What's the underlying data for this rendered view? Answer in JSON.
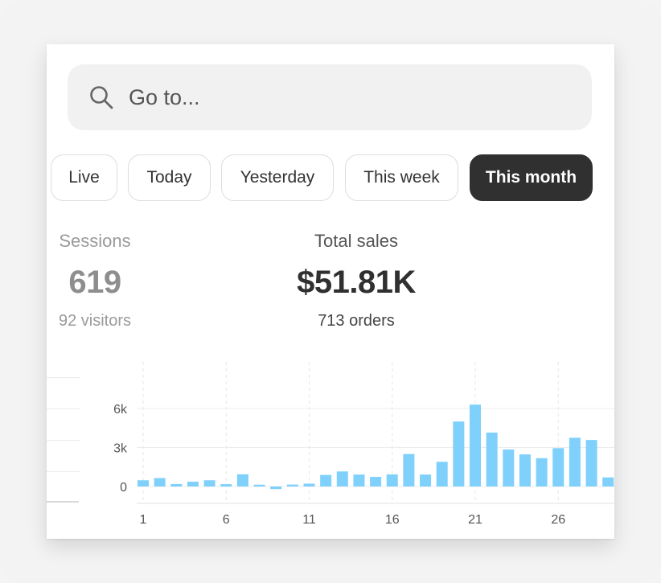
{
  "search": {
    "placeholder": "Go to..."
  },
  "date_ranges": [
    {
      "label": "Live",
      "selected": false
    },
    {
      "label": "Today",
      "selected": false
    },
    {
      "label": "Yesterday",
      "selected": false
    },
    {
      "label": "This week",
      "selected": false
    },
    {
      "label": "This month",
      "selected": true
    }
  ],
  "metrics": {
    "sessions": {
      "label": "Sessions",
      "value": "619",
      "sub": "92 visitors"
    },
    "total_sales": {
      "label": "Total sales",
      "value": "$51.81K",
      "sub": "713 orders"
    }
  },
  "colors": {
    "bar": "#7fd0fb",
    "active_pill": "#303030",
    "search_bg": "#f1f1f1"
  },
  "chart_data": {
    "type": "bar",
    "x": [
      1,
      2,
      3,
      4,
      5,
      6,
      7,
      8,
      9,
      10,
      11,
      12,
      13,
      14,
      15,
      16,
      17,
      18,
      19,
      20,
      21,
      22,
      23,
      24,
      25,
      26,
      27,
      28,
      29
    ],
    "values": [
      480,
      650,
      190,
      370,
      480,
      180,
      940,
      140,
      -200,
      150,
      220,
      890,
      1160,
      920,
      740,
      930,
      2500,
      920,
      1900,
      5000,
      6300,
      4150,
      2850,
      2470,
      2180,
      2950,
      3750,
      3580,
      700
    ],
    "ylim": [
      -400,
      7500
    ],
    "yticks": [
      0,
      3000,
      6000
    ],
    "ytick_labels": [
      "0",
      "3k",
      "6k"
    ],
    "xticks": [
      1,
      6,
      11,
      16,
      21,
      26
    ],
    "xtick_labels": [
      "1",
      "6",
      "11",
      "16",
      "21",
      "26"
    ],
    "grid": true
  }
}
